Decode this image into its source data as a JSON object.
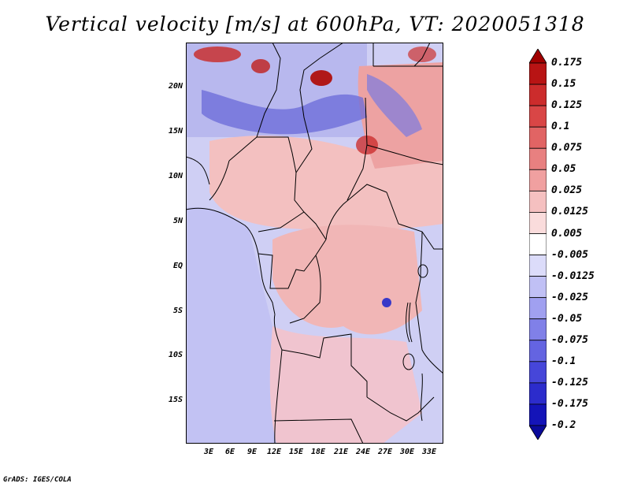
{
  "title": "Vertical velocity [m/s] at 600hPa, VT: 2020051318",
  "footer": "GrADS: IGES/COLA",
  "lat_labels": [
    "20N",
    "15N",
    "10N",
    "5N",
    "EQ",
    "5S",
    "10S",
    "15S"
  ],
  "lon_labels": [
    "3E",
    "6E",
    "9E",
    "12E",
    "15E",
    "18E",
    "21E",
    "24E",
    "27E",
    "30E",
    "33E"
  ],
  "colorbar": {
    "labels": [
      "0.175",
      "0.15",
      "0.125",
      "0.1",
      "0.075",
      "0.05",
      "0.025",
      "0.0125",
      "0.005",
      "-0.005",
      "-0.0125",
      "-0.025",
      "-0.05",
      "-0.075",
      "-0.1",
      "-0.125",
      "-0.175",
      "-0.2"
    ],
    "colors": [
      "#a00000",
      "#b81414",
      "#cc2c2c",
      "#d94646",
      "#e16464",
      "#e88080",
      "#f0a0a0",
      "#f5c0c0",
      "#fadcdc",
      "#ffffff",
      "#dcdcfa",
      "#c0c0f5",
      "#a0a0f0",
      "#8080e8",
      "#6464e1",
      "#4646d9",
      "#2c2ccc",
      "#1414b8",
      "#0a0a9a"
    ]
  },
  "colors": {
    "map_bg": "#c9c9f2",
    "positive": "#f2b0b0",
    "negative": "#9a9aea",
    "border": "#000000"
  }
}
